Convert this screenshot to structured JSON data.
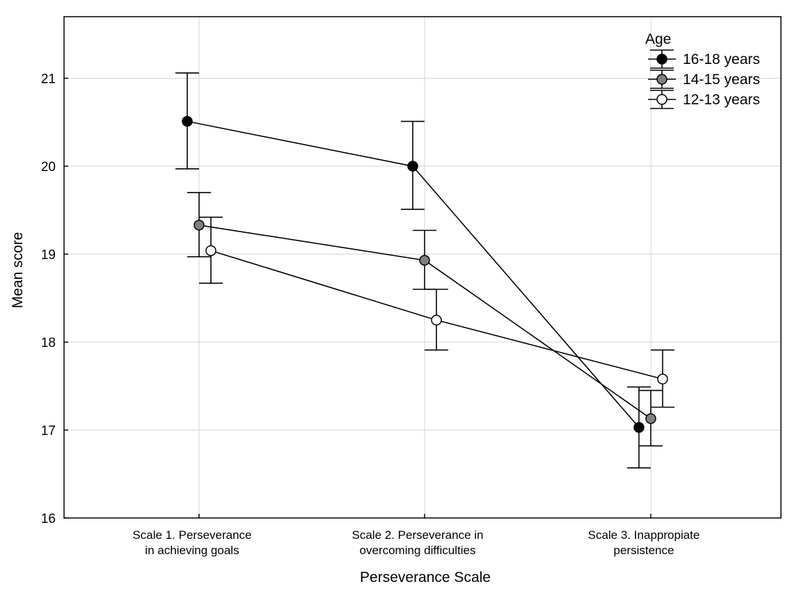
{
  "chart_data": {
    "type": "line",
    "xlabel": "Perseverance Scale",
    "ylabel": "Mean score",
    "ylim": [
      16,
      21.7
    ],
    "yticks": [
      "16",
      "17",
      "18",
      "19",
      "20",
      "21"
    ],
    "grid": true,
    "categories": [
      [
        "Scale 1. Perseverance",
        "in achieving goals"
      ],
      [
        "Scale 2. Perseverance in",
        "overcoming difficulties"
      ],
      [
        "Scale 3. Inappropiate",
        "persistence"
      ]
    ],
    "legend": {
      "title": "Age",
      "position": "top-right"
    },
    "series": [
      {
        "name": "16-18 years",
        "color": "#000000",
        "offset": -1,
        "values": [
          20.51,
          20.0,
          17.03
        ],
        "err": [
          [
            19.97,
            21.06
          ],
          [
            19.51,
            20.51
          ],
          [
            16.57,
            17.49
          ]
        ]
      },
      {
        "name": "14-15 years",
        "color": "#808080",
        "offset": 0,
        "values": [
          19.33,
          18.93,
          17.13
        ],
        "err": [
          [
            18.97,
            19.7
          ],
          [
            18.6,
            19.27
          ],
          [
            16.82,
            17.45
          ]
        ]
      },
      {
        "name": "12-13 years",
        "color": "#ffffff",
        "offset": 1,
        "values": [
          19.04,
          18.25,
          17.58
        ],
        "err": [
          [
            18.67,
            19.42
          ],
          [
            17.91,
            18.6
          ],
          [
            17.26,
            17.91
          ]
        ]
      }
    ]
  }
}
